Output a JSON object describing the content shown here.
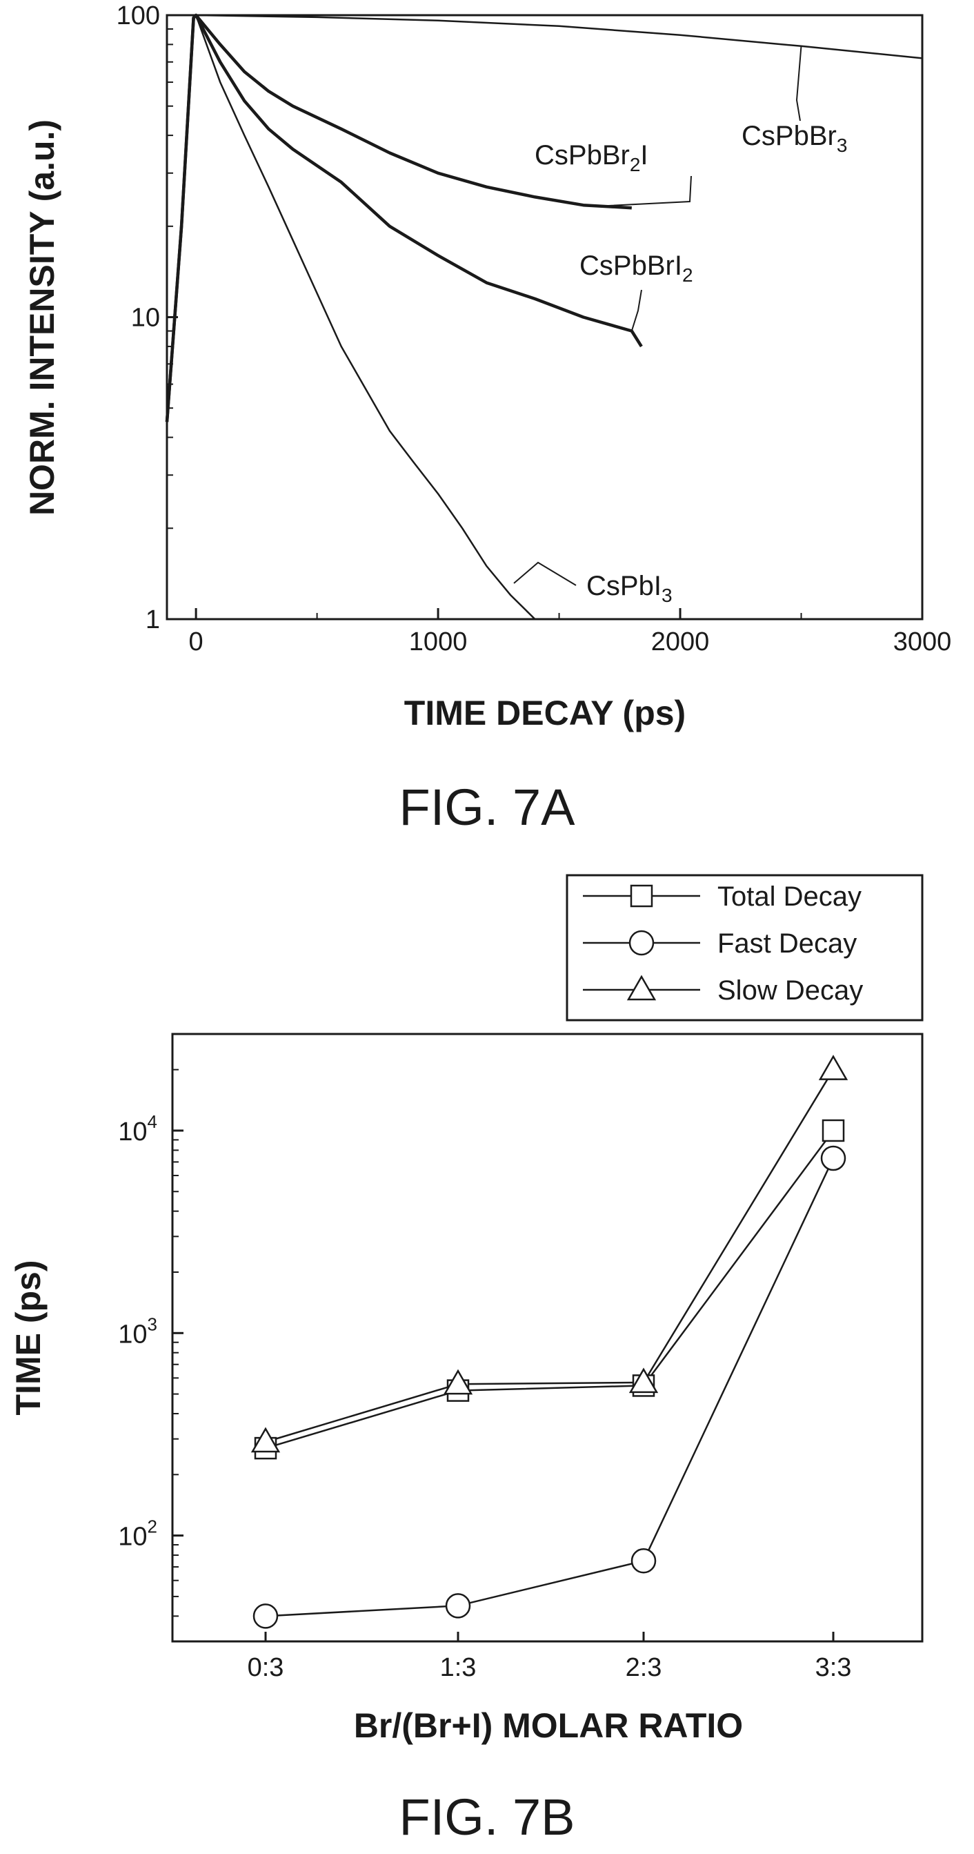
{
  "chart_data": [
    {
      "type": "line",
      "xlabel": "TIME DECAY (ps)",
      "ylabel": "NORM. INTENSITY (a.u.)",
      "caption": "FIG. 7A",
      "x_scale": "linear",
      "y_scale": "log",
      "xlim": [
        -120,
        3000
      ],
      "ylim": [
        1,
        100
      ],
      "x_ticks": [
        "0",
        "1000",
        "2000",
        "3000"
      ],
      "y_ticks": [
        "1",
        "10",
        "100"
      ],
      "grid": false,
      "series": [
        {
          "name": "CsPbBr3",
          "label_main": "CsPbBr",
          "label_sub": "3",
          "x": [
            -120,
            -60,
            -10,
            0,
            500,
            1000,
            1500,
            2000,
            2500,
            3000
          ],
          "y": [
            4.5,
            20,
            98,
            100,
            98.5,
            96,
            92,
            86,
            79,
            72
          ]
        },
        {
          "name": "CsPbBr2I",
          "label_main": "CsPbBr",
          "label_sub": "2",
          "label_tail": "I",
          "x": [
            -120,
            -60,
            -10,
            0,
            100,
            200,
            300,
            400,
            600,
            800,
            1000,
            1200,
            1400,
            1600,
            1800
          ],
          "y": [
            4.5,
            20,
            98,
            100,
            80,
            65,
            56,
            50,
            42,
            35,
            30,
            27,
            25,
            23.5,
            23
          ]
        },
        {
          "name": "CsPbBrI2",
          "label_main": "CsPbBrI",
          "label_sub": "2",
          "x": [
            -120,
            -60,
            -10,
            0,
            100,
            200,
            300,
            400,
            600,
            800,
            1000,
            1200,
            1400,
            1600,
            1800,
            1840
          ],
          "y": [
            4.5,
            20,
            98,
            100,
            70,
            52,
            42,
            36,
            28,
            20,
            16,
            13,
            11.5,
            10,
            9,
            8
          ]
        },
        {
          "name": "CsPbI3",
          "label_main": "CsPbI",
          "label_sub": "3",
          "x": [
            -120,
            -60,
            -10,
            0,
            100,
            200,
            300,
            400,
            500,
            600,
            700,
            800,
            900,
            1000,
            1100,
            1200,
            1300,
            1400
          ],
          "y": [
            4.5,
            20,
            98,
            100,
            60,
            40,
            27,
            18,
            12,
            8,
            5.8,
            4.2,
            3.3,
            2.6,
            2,
            1.5,
            1.2,
            1
          ]
        }
      ]
    },
    {
      "type": "line",
      "xlabel": "Br/(Br+I) MOLAR RATIO",
      "ylabel": "TIME (ps)",
      "caption": "FIG. 7B",
      "y_scale": "log",
      "ylim": [
        30,
        30000
      ],
      "categories": [
        "0:3",
        "1:3",
        "2:3",
        "3:3"
      ],
      "y_ticks": [
        {
          "base": "10",
          "exp": "2"
        },
        {
          "base": "10",
          "exp": "3"
        },
        {
          "base": "10",
          "exp": "4"
        }
      ],
      "grid": false,
      "legend_position": "top-right (outside plot)",
      "series": [
        {
          "name": "Total Decay",
          "marker": "square",
          "values": [
            270,
            520,
            550,
            10000
          ]
        },
        {
          "name": "Fast Decay",
          "marker": "circle",
          "values": [
            40,
            45,
            75,
            7300
          ]
        },
        {
          "name": "Slow Decay",
          "marker": "triangle",
          "values": [
            290,
            560,
            570,
            20000
          ]
        }
      ]
    }
  ]
}
